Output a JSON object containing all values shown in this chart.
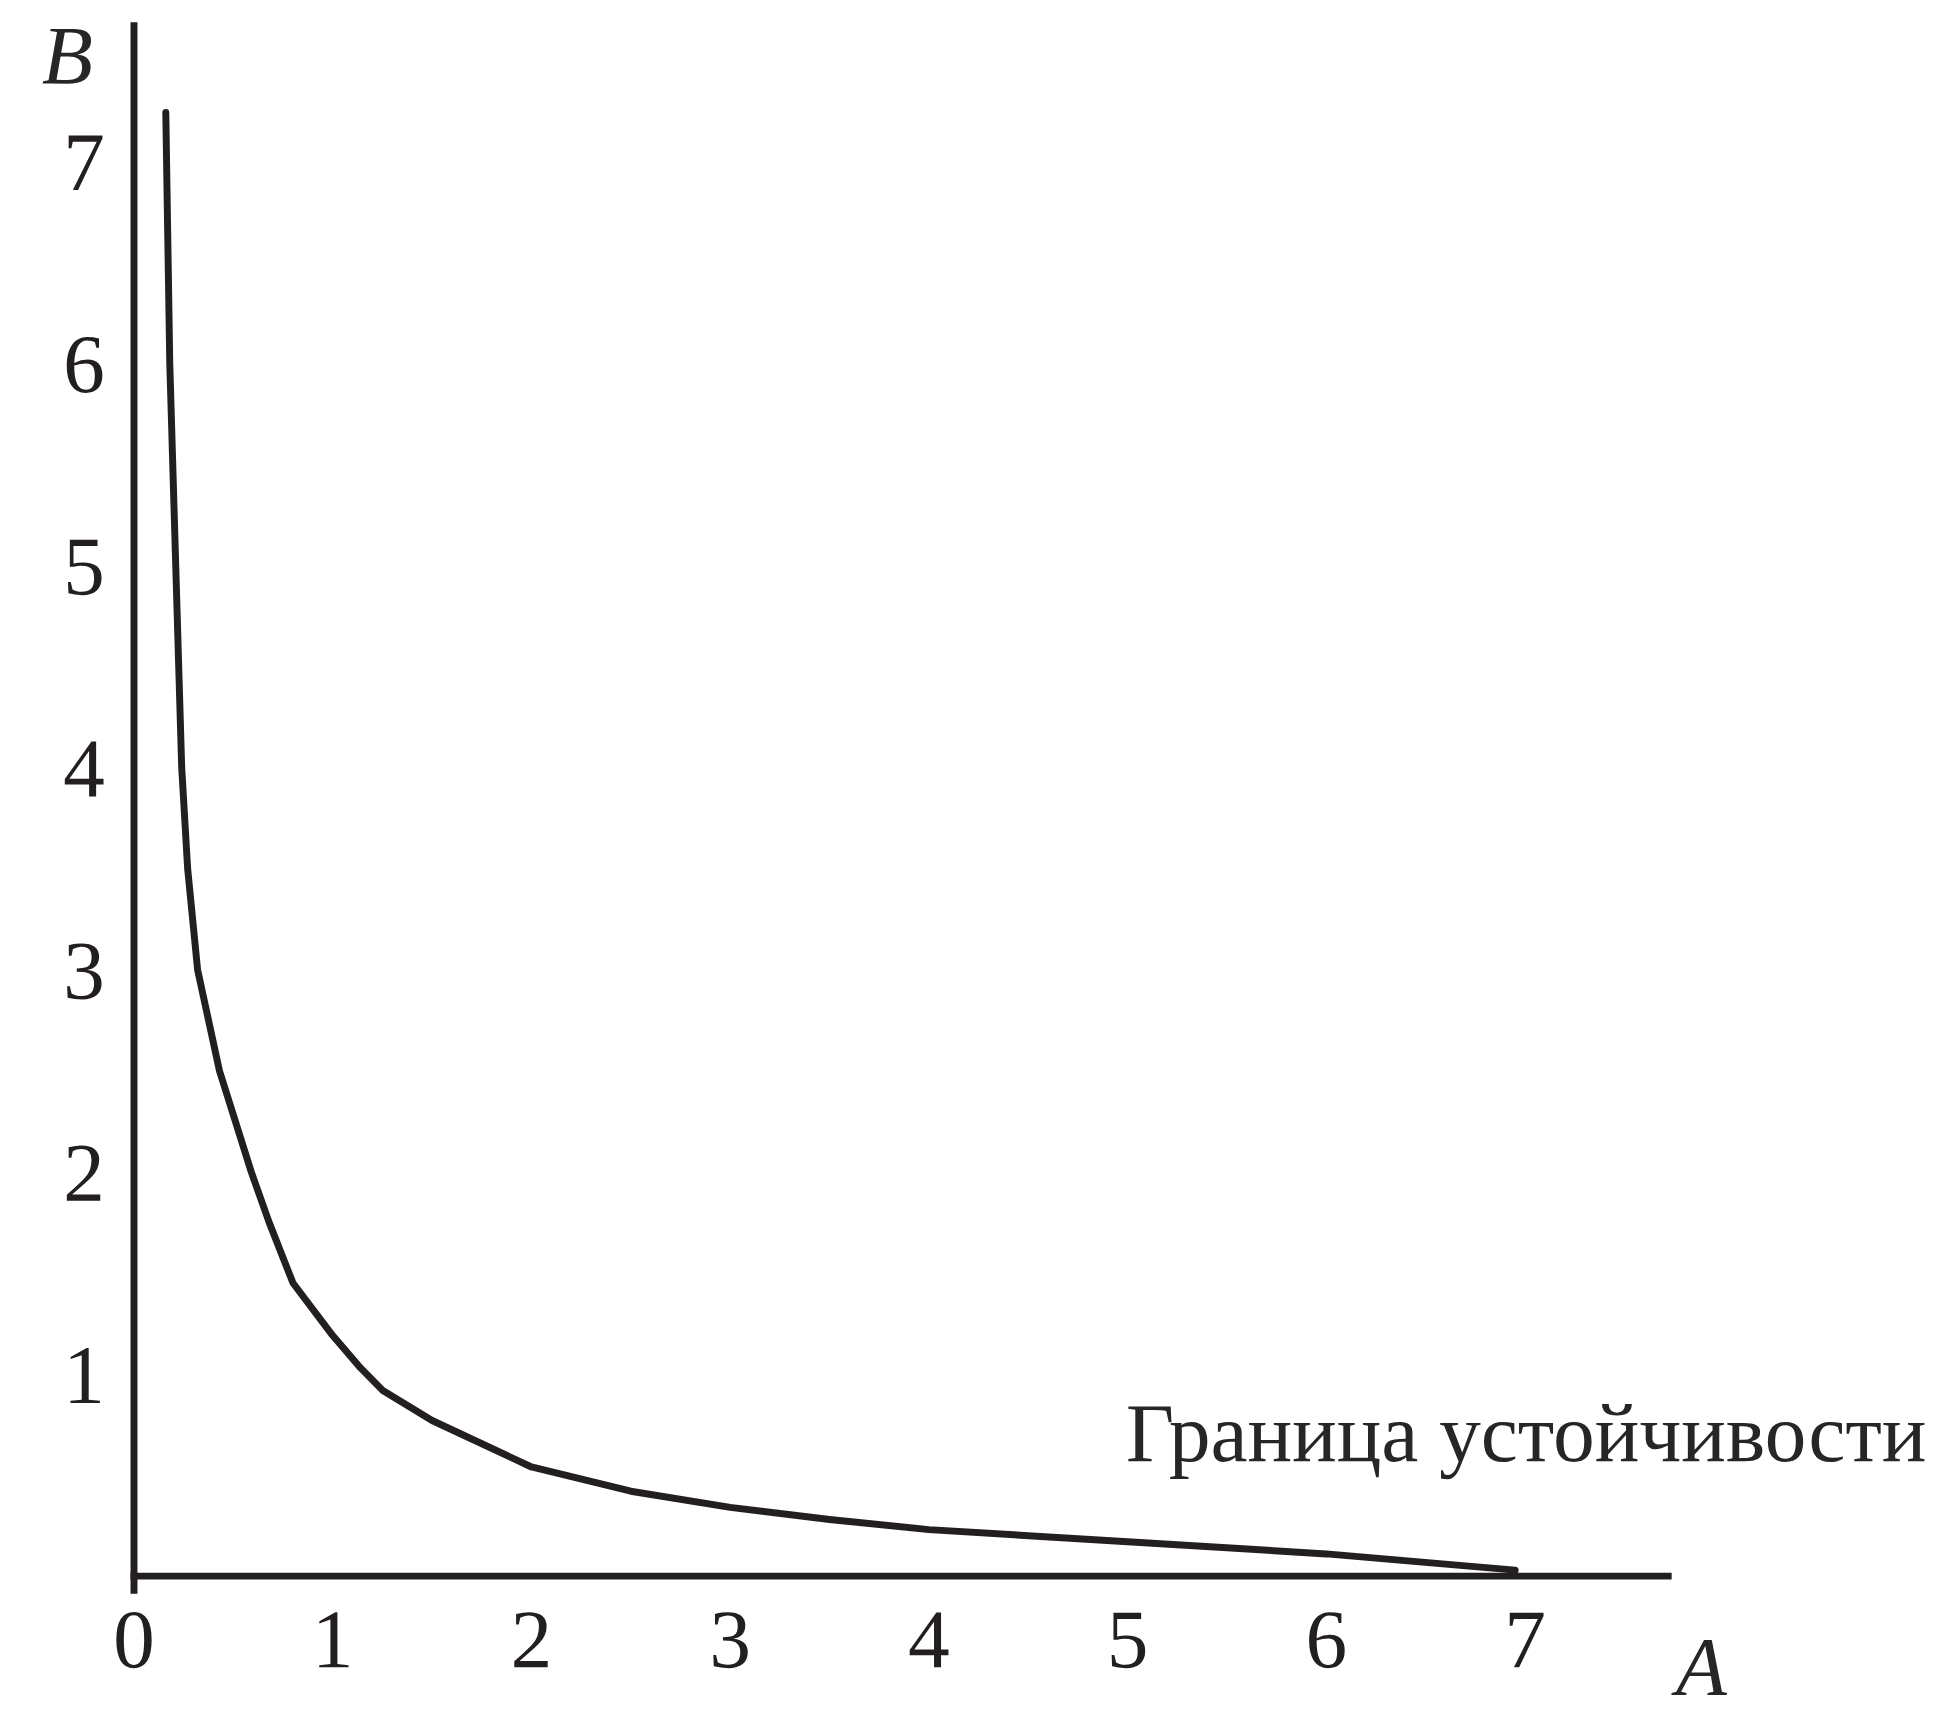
{
  "chart_data": {
    "type": "line",
    "xlabel": "A",
    "ylabel": "B",
    "x": [
      0.16,
      0.18,
      0.21,
      0.24,
      0.27,
      0.32,
      0.43,
      0.59,
      0.68,
      0.8,
      1.0,
      1.14,
      1.25,
      1.5,
      2.0,
      2.5,
      3.0,
      3.5,
      4.0,
      5.0,
      6.0,
      6.95
    ],
    "series": [
      {
        "color": "#231f20",
        "values": [
          7.24,
          6.0,
          5.0,
          4.0,
          3.5,
          3.0,
          2.5,
          2.0,
          1.75,
          1.45,
          1.19,
          1.03,
          0.92,
          0.77,
          0.54,
          0.42,
          0.34,
          0.28,
          0.23,
          0.17,
          0.11,
          0.03
        ]
      }
    ],
    "xlim": [
      0,
      7.72
    ],
    "ylim": [
      -0.07,
      7.67
    ],
    "xticks": [
      {
        "value": 0,
        "label": "0"
      },
      1,
      2,
      3,
      4,
      5,
      6,
      7
    ],
    "yticks": [
      1,
      2,
      3,
      4,
      5,
      6,
      7
    ],
    "grid": false,
    "legend": false,
    "marker": "none",
    "line_style": "solid",
    "annotations": [
      "Граница устойчивости"
    ]
  }
}
